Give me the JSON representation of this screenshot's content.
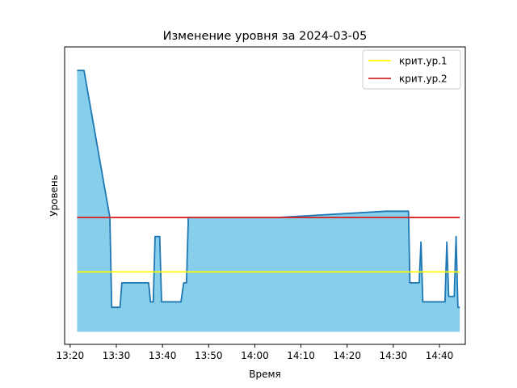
{
  "chart_data": {
    "type": "area",
    "title": "Изменение уровня за 2024-03-05",
    "xlabel": "Время",
    "ylabel": "Уровень",
    "x_ticks": [
      "13:20",
      "13:30",
      "13:40",
      "13:50",
      "14:00",
      "14:10",
      "14:20",
      "14:30",
      "14:40"
    ],
    "xlim": [
      "13:18.8",
      "14:45.6"
    ],
    "ylim": [
      0,
      100
    ],
    "grid": false,
    "legend": "top-right",
    "fill_color": "#87ceeb",
    "line_color": "#1f77b4",
    "level_series": {
      "x": [
        "13:21.5",
        "13:23.0",
        "13:28.6",
        "13:28.6",
        "13:29.0",
        "13:30.8",
        "13:31.2",
        "13:37.0",
        "13:37.4",
        "13:38.0",
        "13:38.4",
        "13:39.4",
        "13:39.8",
        "13:41.5",
        "13:44.0",
        "13:44.6",
        "13:45.2",
        "13:45.6",
        "14:05.0",
        "14:28.5",
        "14:33.3",
        "14:33.6",
        "14:35.6",
        "14:36.0",
        "14:36.4",
        "14:37.0",
        "14:41.2",
        "14:41.6",
        "14:42.0",
        "14:43.2",
        "14:43.6",
        "14:44.0",
        "14:44.4"
      ],
      "y": [
        96,
        96,
        42,
        42,
        9,
        9,
        18,
        18,
        11,
        11,
        35,
        35,
        11,
        11,
        11,
        18,
        18,
        42,
        42,
        44.3,
        44.3,
        18,
        18,
        33,
        11,
        11,
        11,
        33,
        13,
        13,
        35,
        9,
        9
      ]
    },
    "series": [
      {
        "name": "крит.ур.1",
        "value": 22,
        "color": "#ffff00"
      },
      {
        "name": "крит.ур.2",
        "value": 42,
        "color": "#d62728"
      }
    ]
  }
}
